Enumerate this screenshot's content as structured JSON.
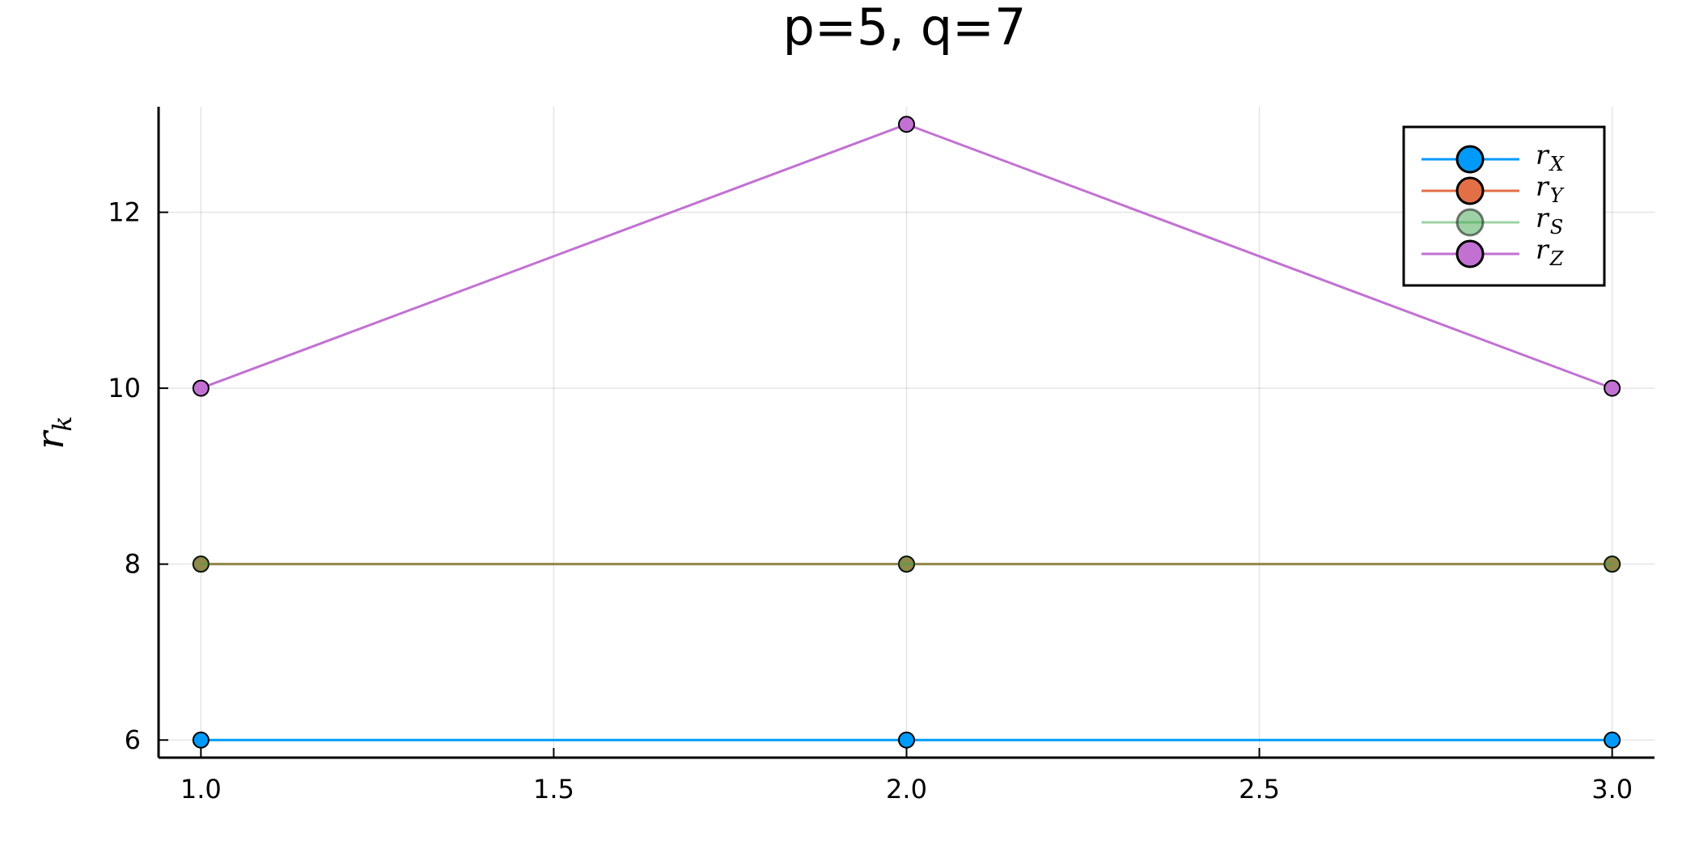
{
  "chart_data": {
    "type": "line",
    "title": "p=5, q=7",
    "xlabel": "",
    "ylabel": {
      "base": "r",
      "sub": "k"
    },
    "x": [
      1.0,
      2.0,
      3.0
    ],
    "xlim": [
      0.94,
      3.06
    ],
    "ylim": [
      5.8,
      13.2
    ],
    "xticks": [
      1.0,
      1.5,
      2.0,
      2.5,
      3.0
    ],
    "xtick_labels": [
      "1.0",
      "1.5",
      "2.0",
      "2.5",
      "3.0"
    ],
    "yticks": [
      6,
      8,
      10,
      12
    ],
    "ytick_labels": [
      "6",
      "8",
      "10",
      "12"
    ],
    "grid": true,
    "legend_position": "top-right",
    "series": [
      {
        "name": "r_X",
        "label_base": "r",
        "label_sub": "X",
        "values": [
          6,
          6,
          6
        ],
        "color": "#009AFA",
        "alpha": 1.0
      },
      {
        "name": "r_Y",
        "label_base": "r",
        "label_sub": "Y",
        "values": [
          8,
          8,
          8
        ],
        "color": "#E26F46",
        "alpha": 1.0
      },
      {
        "name": "r_S",
        "label_base": "r",
        "label_sub": "S",
        "values": [
          8,
          8,
          8
        ],
        "color": "#3EA44E",
        "alpha": 0.5
      },
      {
        "name": "r_Z",
        "label_base": "r",
        "label_sub": "Z",
        "values": [
          10,
          13,
          10
        ],
        "color": "#C271D2",
        "alpha": 1.0
      }
    ]
  }
}
